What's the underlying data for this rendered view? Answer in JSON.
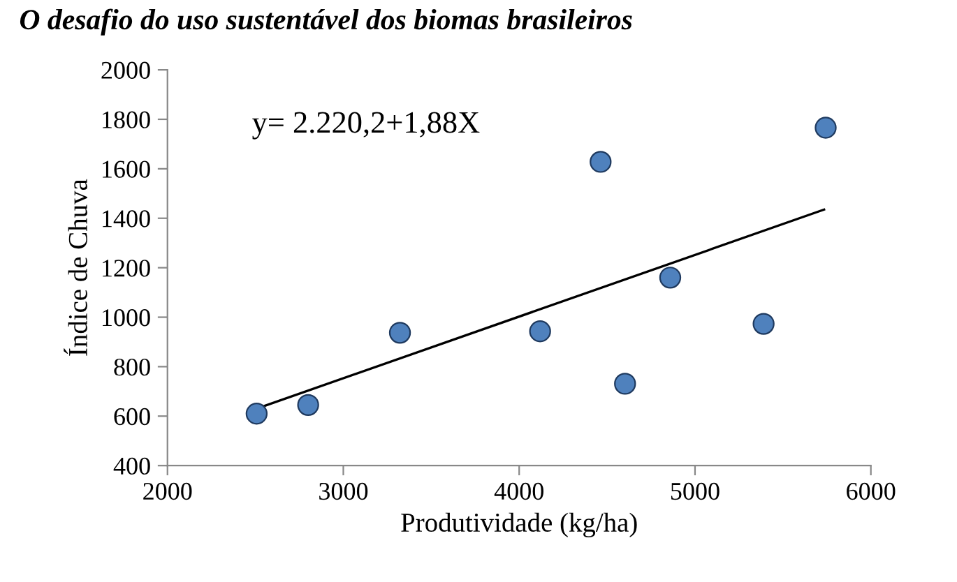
{
  "chart_data": {
    "type": "scatter",
    "title": "O desafio do uso sustentável dos biomas brasileiros",
    "xlabel": "Produtividade (kg/ha)",
    "ylabel": "Índice de Chuva",
    "annotations": [
      "y= 2.220,2+1,88X"
    ],
    "series": [
      {
        "color": "#4f81bd",
        "marker": "circle",
        "x": [
          2507,
          2800,
          3322,
          4119,
          4463,
          4602,
          4859,
          5390,
          5743
        ],
        "values": [
          610,
          645,
          937,
          943,
          1628,
          731,
          1160,
          973,
          1766
        ]
      },
      {
        "type": "line",
        "color": "#000000",
        "marker": "none",
        "line_style": "solid",
        "x": [
          2507,
          5734
        ],
        "values": [
          630,
          1435
        ]
      }
    ],
    "xlim": [
      2000,
      6000
    ],
    "xticks": [
      2000,
      3000,
      4000,
      5000,
      6000
    ],
    "ylim": [
      400,
      2000
    ],
    "yticks": [
      400,
      600,
      800,
      1000,
      1200,
      1400,
      1600,
      1800,
      2000
    ],
    "grid": false
  }
}
